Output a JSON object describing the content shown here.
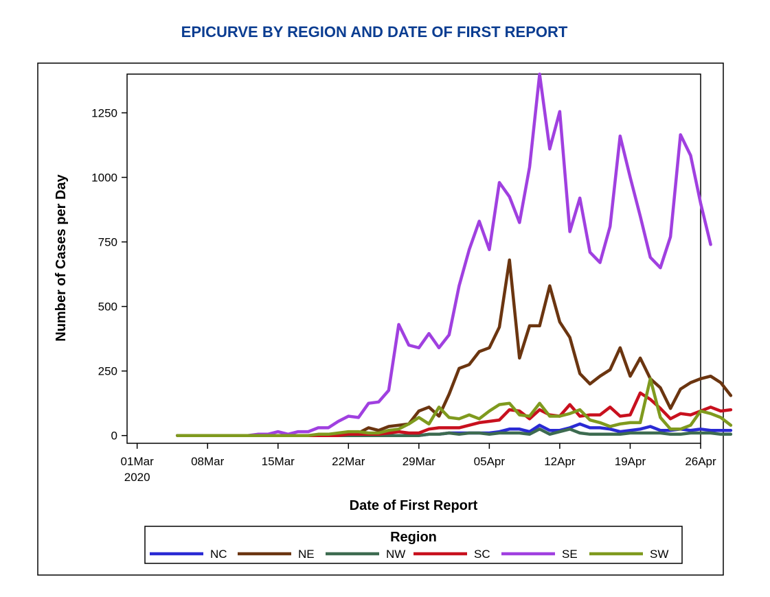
{
  "chart_data": {
    "type": "line",
    "title": "EPICURVE BY REGION AND DATE OF FIRST REPORT",
    "xlabel": "Date of First Report",
    "ylabel": "Number of Cases per Day",
    "x_start_day": 4,
    "x_note": "x values are day indices counted from 01Mar2020 (01Mar = 0); series values start at day 4 and are daily.",
    "xlim": [
      -1,
      56
    ],
    "ylim": [
      -30,
      1400
    ],
    "x_ticks": [
      {
        "day": 0,
        "label": "01Mar",
        "sub": "2020"
      },
      {
        "day": 7,
        "label": "08Mar",
        "sub": ""
      },
      {
        "day": 14,
        "label": "15Mar",
        "sub": ""
      },
      {
        "day": 21,
        "label": "22Mar",
        "sub": ""
      },
      {
        "day": 28,
        "label": "29Mar",
        "sub": ""
      },
      {
        "day": 35,
        "label": "05Apr",
        "sub": ""
      },
      {
        "day": 42,
        "label": "12Apr",
        "sub": ""
      },
      {
        "day": 49,
        "label": "19Apr",
        "sub": ""
      },
      {
        "day": 56,
        "label": "26Apr",
        "sub": ""
      }
    ],
    "y_ticks": [
      0,
      250,
      500,
      750,
      1000,
      1250
    ],
    "legend_title": "Region",
    "series": [
      {
        "name": "NC",
        "color": "#2a2ad4",
        "values": [
          0,
          0,
          0,
          0,
          0,
          0,
          0,
          0,
          0,
          0,
          0,
          0,
          0,
          0,
          0,
          0,
          0,
          0,
          0,
          0,
          0,
          0,
          0,
          0,
          0,
          5,
          5,
          10,
          10,
          10,
          10,
          10,
          15,
          25,
          25,
          15,
          40,
          20,
          20,
          30,
          45,
          30,
          30,
          25,
          15,
          20,
          25,
          35,
          20,
          20,
          25,
          20,
          25,
          20,
          20,
          20
        ]
      },
      {
        "name": "NE",
        "color": "#6b3510",
        "values": [
          0,
          0,
          0,
          0,
          0,
          0,
          0,
          0,
          0,
          0,
          0,
          0,
          0,
          0,
          0,
          0,
          5,
          5,
          10,
          30,
          20,
          35,
          40,
          45,
          95,
          110,
          75,
          160,
          260,
          275,
          325,
          340,
          420,
          680,
          300,
          425,
          425,
          580,
          440,
          380,
          240,
          200,
          230,
          255,
          340,
          230,
          300,
          220,
          185,
          105,
          180,
          205,
          220,
          230,
          205,
          155
        ]
      },
      {
        "name": "NW",
        "color": "#3d6b50",
        "values": [
          0,
          0,
          0,
          0,
          0,
          0,
          0,
          0,
          0,
          0,
          0,
          0,
          0,
          0,
          0,
          0,
          0,
          0,
          0,
          0,
          0,
          0,
          0,
          0,
          0,
          5,
          5,
          10,
          5,
          10,
          10,
          5,
          10,
          10,
          10,
          5,
          25,
          5,
          15,
          25,
          10,
          5,
          5,
          5,
          5,
          10,
          10,
          10,
          10,
          5,
          5,
          10,
          10,
          10,
          5,
          5
        ]
      },
      {
        "name": "SC",
        "color": "#c8101e",
        "values": [
          0,
          0,
          0,
          0,
          0,
          0,
          0,
          0,
          0,
          0,
          0,
          0,
          0,
          0,
          0,
          0,
          0,
          5,
          5,
          5,
          5,
          10,
          15,
          10,
          10,
          25,
          30,
          30,
          30,
          40,
          50,
          55,
          60,
          100,
          95,
          65,
          100,
          80,
          75,
          120,
          75,
          80,
          80,
          110,
          75,
          80,
          165,
          140,
          105,
          65,
          85,
          80,
          95,
          110,
          95,
          100
        ]
      },
      {
        "name": "SE",
        "color": "#a040e0",
        "values": [
          0,
          0,
          0,
          0,
          0,
          0,
          0,
          0,
          5,
          5,
          15,
          5,
          15,
          15,
          30,
          30,
          55,
          75,
          70,
          125,
          130,
          175,
          430,
          350,
          340,
          395,
          340,
          390,
          580,
          720,
          830,
          720,
          980,
          925,
          825,
          1040,
          1400,
          1110,
          1255,
          790,
          920,
          710,
          670,
          810,
          1160,
          1000,
          850,
          690,
          650,
          770,
          1165,
          1085,
          900,
          740
        ]
      },
      {
        "name": "SW",
        "color": "#7f9a1e",
        "values": [
          0,
          0,
          0,
          0,
          0,
          0,
          0,
          0,
          0,
          0,
          0,
          0,
          0,
          0,
          5,
          5,
          10,
          15,
          15,
          10,
          10,
          20,
          25,
          45,
          70,
          45,
          110,
          70,
          65,
          80,
          65,
          95,
          120,
          125,
          80,
          75,
          125,
          75,
          75,
          85,
          100,
          60,
          50,
          35,
          45,
          50,
          50,
          220,
          70,
          25,
          25,
          40,
          95,
          85,
          70,
          40
        ]
      }
    ]
  }
}
